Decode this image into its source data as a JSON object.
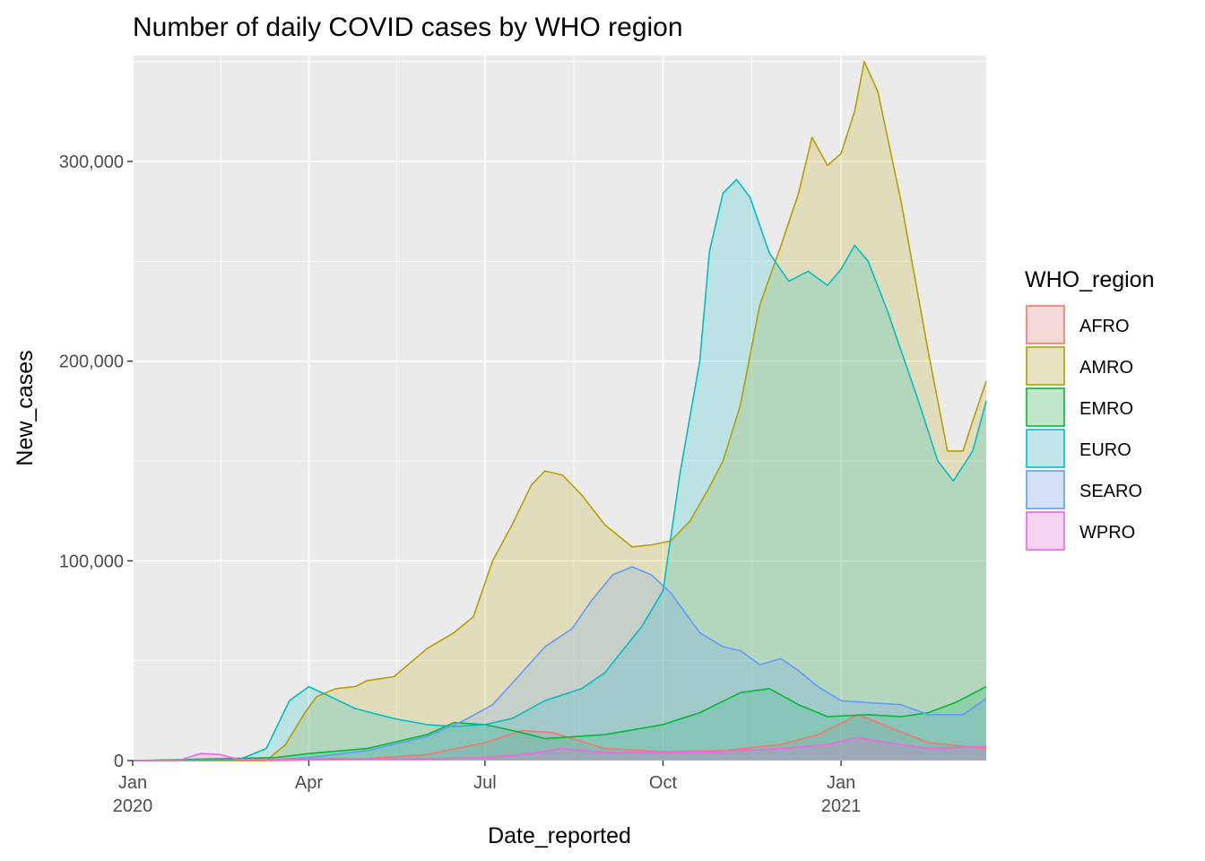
{
  "chart_data": {
    "type": "area",
    "title": "Number of daily COVID cases by WHO region",
    "xlabel": "Date_reported",
    "ylabel": "New_cases",
    "x_range": [
      "2020-01-01",
      "2021-03-17"
    ],
    "ylim": [
      0,
      353000
    ],
    "x_ticks": [
      {
        "date": "2020-01-01",
        "label": "Jan",
        "sublabel": "2020"
      },
      {
        "date": "2020-04-01",
        "label": "Apr",
        "sublabel": ""
      },
      {
        "date": "2020-07-01",
        "label": "Jul",
        "sublabel": ""
      },
      {
        "date": "2020-10-01",
        "label": "Oct",
        "sublabel": ""
      },
      {
        "date": "2021-01-01",
        "label": "Jan",
        "sublabel": "2021"
      }
    ],
    "y_ticks": [
      {
        "value": 0,
        "label": "0"
      },
      {
        "value": 100000,
        "label": "100,000"
      },
      {
        "value": 200000,
        "label": "200,000"
      },
      {
        "value": 300000,
        "label": "300,000"
      }
    ],
    "grid": true,
    "legend": {
      "title": "WHO_region",
      "placement": "right"
    },
    "series": [
      {
        "name": "AFRO",
        "color": "#F8766D",
        "points": [
          [
            "2020-01-01",
            0
          ],
          [
            "2020-03-15",
            0
          ],
          [
            "2020-04-01",
            300
          ],
          [
            "2020-05-01",
            1000
          ],
          [
            "2020-06-01",
            3000
          ],
          [
            "2020-07-01",
            9000
          ],
          [
            "2020-07-20",
            15000
          ],
          [
            "2020-08-05",
            14000
          ],
          [
            "2020-09-01",
            6000
          ],
          [
            "2020-10-01",
            4500
          ],
          [
            "2020-11-01",
            5000
          ],
          [
            "2020-12-01",
            8000
          ],
          [
            "2020-12-20",
            13000
          ],
          [
            "2021-01-10",
            23000
          ],
          [
            "2021-01-25",
            17000
          ],
          [
            "2021-02-15",
            9000
          ],
          [
            "2021-03-17",
            6000
          ]
        ]
      },
      {
        "name": "AMRO",
        "color": "#B79F00",
        "points": [
          [
            "2020-01-01",
            0
          ],
          [
            "2020-03-10",
            0
          ],
          [
            "2020-03-20",
            8000
          ],
          [
            "2020-03-30",
            24000
          ],
          [
            "2020-04-05",
            32000
          ],
          [
            "2020-04-15",
            36000
          ],
          [
            "2020-04-25",
            37000
          ],
          [
            "2020-05-01",
            40000
          ],
          [
            "2020-05-15",
            42000
          ],
          [
            "2020-06-01",
            56000
          ],
          [
            "2020-06-15",
            64000
          ],
          [
            "2020-06-25",
            72000
          ],
          [
            "2020-07-05",
            100000
          ],
          [
            "2020-07-15",
            118000
          ],
          [
            "2020-07-25",
            138000
          ],
          [
            "2020-08-01",
            145000
          ],
          [
            "2020-08-10",
            143000
          ],
          [
            "2020-08-20",
            133000
          ],
          [
            "2020-09-01",
            118000
          ],
          [
            "2020-09-15",
            107000
          ],
          [
            "2020-09-25",
            108000
          ],
          [
            "2020-10-05",
            110000
          ],
          [
            "2020-10-15",
            120000
          ],
          [
            "2020-10-25",
            137000
          ],
          [
            "2020-11-01",
            150000
          ],
          [
            "2020-11-10",
            178000
          ],
          [
            "2020-11-20",
            228000
          ],
          [
            "2020-12-01",
            258000
          ],
          [
            "2020-12-10",
            284000
          ],
          [
            "2020-12-17",
            312000
          ],
          [
            "2020-12-25",
            298000
          ],
          [
            "2021-01-01",
            304000
          ],
          [
            "2021-01-08",
            325000
          ],
          [
            "2021-01-13",
            350000
          ],
          [
            "2021-01-20",
            335000
          ],
          [
            "2021-02-01",
            280000
          ],
          [
            "2021-02-15",
            205000
          ],
          [
            "2021-02-25",
            155000
          ],
          [
            "2021-03-05",
            155000
          ],
          [
            "2021-03-10",
            170000
          ],
          [
            "2021-03-17",
            190000
          ]
        ]
      },
      {
        "name": "EMRO",
        "color": "#00BA38",
        "points": [
          [
            "2020-01-01",
            0
          ],
          [
            "2020-03-15",
            1500
          ],
          [
            "2020-04-01",
            3500
          ],
          [
            "2020-05-01",
            6000
          ],
          [
            "2020-06-01",
            13000
          ],
          [
            "2020-06-15",
            19000
          ],
          [
            "2020-07-01",
            18000
          ],
          [
            "2020-07-20",
            14000
          ],
          [
            "2020-08-01",
            11000
          ],
          [
            "2020-09-01",
            13000
          ],
          [
            "2020-10-01",
            18000
          ],
          [
            "2020-10-20",
            24000
          ],
          [
            "2020-11-10",
            34000
          ],
          [
            "2020-11-25",
            36000
          ],
          [
            "2020-12-10",
            28000
          ],
          [
            "2020-12-25",
            22000
          ],
          [
            "2021-01-15",
            23000
          ],
          [
            "2021-02-01",
            22000
          ],
          [
            "2021-02-15",
            24000
          ],
          [
            "2021-03-01",
            29000
          ],
          [
            "2021-03-17",
            37000
          ]
        ]
      },
      {
        "name": "EURO",
        "color": "#00BFC4",
        "points": [
          [
            "2020-01-01",
            0
          ],
          [
            "2020-02-25",
            500
          ],
          [
            "2020-03-10",
            6000
          ],
          [
            "2020-03-22",
            30000
          ],
          [
            "2020-04-01",
            37000
          ],
          [
            "2020-04-10",
            33000
          ],
          [
            "2020-04-25",
            26000
          ],
          [
            "2020-05-15",
            21000
          ],
          [
            "2020-06-01",
            18000
          ],
          [
            "2020-06-15",
            17000
          ],
          [
            "2020-07-01",
            18000
          ],
          [
            "2020-07-15",
            21000
          ],
          [
            "2020-08-01",
            30000
          ],
          [
            "2020-08-20",
            36000
          ],
          [
            "2020-09-01",
            44000
          ],
          [
            "2020-09-10",
            55000
          ],
          [
            "2020-09-20",
            67000
          ],
          [
            "2020-10-01",
            85000
          ],
          [
            "2020-10-10",
            145000
          ],
          [
            "2020-10-20",
            200000
          ],
          [
            "2020-10-25",
            255000
          ],
          [
            "2020-11-01",
            284000
          ],
          [
            "2020-11-08",
            291000
          ],
          [
            "2020-11-15",
            282000
          ],
          [
            "2020-11-25",
            254000
          ],
          [
            "2020-12-05",
            240000
          ],
          [
            "2020-12-15",
            245000
          ],
          [
            "2020-12-25",
            238000
          ],
          [
            "2021-01-01",
            246000
          ],
          [
            "2021-01-08",
            258000
          ],
          [
            "2021-01-15",
            250000
          ],
          [
            "2021-01-25",
            225000
          ],
          [
            "2021-02-10",
            180000
          ],
          [
            "2021-02-20",
            150000
          ],
          [
            "2021-02-28",
            140000
          ],
          [
            "2021-03-10",
            155000
          ],
          [
            "2021-03-17",
            180000
          ]
        ]
      },
      {
        "name": "SEARO",
        "color": "#619CFF",
        "points": [
          [
            "2020-01-01",
            0
          ],
          [
            "2020-03-15",
            500
          ],
          [
            "2020-04-01",
            1500
          ],
          [
            "2020-05-01",
            5000
          ],
          [
            "2020-06-01",
            12000
          ],
          [
            "2020-06-20",
            20000
          ],
          [
            "2020-07-05",
            28000
          ],
          [
            "2020-07-20",
            44000
          ],
          [
            "2020-08-01",
            57000
          ],
          [
            "2020-08-15",
            66000
          ],
          [
            "2020-08-25",
            80000
          ],
          [
            "2020-09-05",
            93000
          ],
          [
            "2020-09-15",
            97000
          ],
          [
            "2020-09-25",
            93000
          ],
          [
            "2020-10-05",
            84000
          ],
          [
            "2020-10-20",
            64000
          ],
          [
            "2020-11-01",
            57000
          ],
          [
            "2020-11-10",
            55000
          ],
          [
            "2020-11-20",
            48000
          ],
          [
            "2020-12-01",
            51000
          ],
          [
            "2020-12-10",
            45000
          ],
          [
            "2020-12-20",
            37000
          ],
          [
            "2021-01-01",
            30000
          ],
          [
            "2021-01-15",
            29000
          ],
          [
            "2021-02-01",
            28000
          ],
          [
            "2021-02-15",
            23000
          ],
          [
            "2021-03-05",
            23000
          ],
          [
            "2021-03-17",
            31000
          ]
        ]
      },
      {
        "name": "WPRO",
        "color": "#F564E3",
        "points": [
          [
            "2020-01-01",
            0
          ],
          [
            "2020-01-25",
            200
          ],
          [
            "2020-02-05",
            3500
          ],
          [
            "2020-02-15",
            3000
          ],
          [
            "2020-02-25",
            500
          ],
          [
            "2020-03-15",
            500
          ],
          [
            "2020-04-15",
            1000
          ],
          [
            "2020-06-01",
            800
          ],
          [
            "2020-07-01",
            1500
          ],
          [
            "2020-07-25",
            3500
          ],
          [
            "2020-08-10",
            6000
          ],
          [
            "2020-09-01",
            4000
          ],
          [
            "2020-10-01",
            4000
          ],
          [
            "2020-11-01",
            4500
          ],
          [
            "2020-12-01",
            6000
          ],
          [
            "2020-12-25",
            8000
          ],
          [
            "2021-01-10",
            11500
          ],
          [
            "2021-01-25",
            9000
          ],
          [
            "2021-02-15",
            6000
          ],
          [
            "2021-03-17",
            7000
          ]
        ]
      }
    ]
  }
}
